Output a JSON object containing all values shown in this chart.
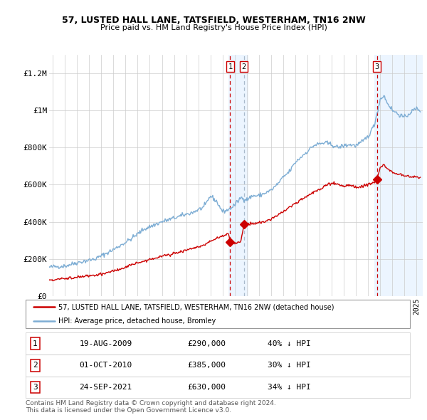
{
  "title1": "57, LUSTED HALL LANE, TATSFIELD, WESTERHAM, TN16 2NW",
  "title2": "Price paid vs. HM Land Registry's House Price Index (HPI)",
  "xlim_start": 1994.7,
  "xlim_end": 2025.5,
  "ylim": [
    0,
    1300000
  ],
  "yticks": [
    0,
    200000,
    400000,
    600000,
    800000,
    1000000,
    1200000
  ],
  "ytick_labels": [
    "£0",
    "£200K",
    "£400K",
    "£600K",
    "£800K",
    "£1M",
    "£1.2M"
  ],
  "sale1_date": 2009.63,
  "sale1_price": 290000,
  "sale1_label": "1",
  "sale2_date": 2010.75,
  "sale2_price": 385000,
  "sale2_label": "2",
  "sale3_date": 2021.73,
  "sale3_price": 630000,
  "sale3_label": "3",
  "red_line_color": "#cc0000",
  "blue_line_color": "#7dadd4",
  "marker_color": "#cc0000",
  "vline1_color": "#cc0000",
  "vline2_color": "#aabbcc",
  "vline3_color": "#cc0000",
  "shade_color": "#ddeeff",
  "shade_alpha": 0.55,
  "legend_text1": "57, LUSTED HALL LANE, TATSFIELD, WESTERHAM, TN16 2NW (detached house)",
  "legend_text2": "HPI: Average price, detached house, Bromley",
  "table_rows": [
    [
      "1",
      "19-AUG-2009",
      "£290,000",
      "40% ↓ HPI"
    ],
    [
      "2",
      "01-OCT-2010",
      "£385,000",
      "30% ↓ HPI"
    ],
    [
      "3",
      "24-SEP-2021",
      "£630,000",
      "34% ↓ HPI"
    ]
  ],
  "footnote1": "Contains HM Land Registry data © Crown copyright and database right 2024.",
  "footnote2": "This data is licensed under the Open Government Licence v3.0.",
  "hpi_anchors": [
    [
      1994.7,
      155000
    ],
    [
      1995.0,
      158000
    ],
    [
      1996.0,
      162000
    ],
    [
      1997.0,
      180000
    ],
    [
      1998.5,
      200000
    ],
    [
      2000.0,
      250000
    ],
    [
      2001.5,
      310000
    ],
    [
      2002.5,
      360000
    ],
    [
      2004.0,
      400000
    ],
    [
      2005.5,
      430000
    ],
    [
      2006.5,
      450000
    ],
    [
      2007.5,
      480000
    ],
    [
      2008.0,
      540000
    ],
    [
      2008.5,
      510000
    ],
    [
      2009.0,
      455000
    ],
    [
      2009.5,
      465000
    ],
    [
      2010.0,
      490000
    ],
    [
      2010.5,
      530000
    ],
    [
      2011.0,
      520000
    ],
    [
      2011.5,
      540000
    ],
    [
      2012.0,
      540000
    ],
    [
      2013.0,
      570000
    ],
    [
      2013.5,
      600000
    ],
    [
      2014.0,
      640000
    ],
    [
      2014.5,
      670000
    ],
    [
      2015.0,
      720000
    ],
    [
      2015.5,
      750000
    ],
    [
      2016.0,
      780000
    ],
    [
      2016.5,
      810000
    ],
    [
      2017.0,
      820000
    ],
    [
      2017.5,
      825000
    ],
    [
      2018.0,
      815000
    ],
    [
      2018.5,
      800000
    ],
    [
      2019.0,
      810000
    ],
    [
      2019.5,
      815000
    ],
    [
      2020.0,
      810000
    ],
    [
      2020.5,
      830000
    ],
    [
      2021.0,
      860000
    ],
    [
      2021.5,
      920000
    ],
    [
      2022.0,
      1060000
    ],
    [
      2022.3,
      1080000
    ],
    [
      2022.5,
      1050000
    ],
    [
      2023.0,
      1000000
    ],
    [
      2023.5,
      980000
    ],
    [
      2024.0,
      960000
    ],
    [
      2024.5,
      990000
    ],
    [
      2025.0,
      1010000
    ],
    [
      2025.3,
      1000000
    ]
  ],
  "red_anchors": [
    [
      1994.7,
      87000
    ],
    [
      1995.0,
      88000
    ],
    [
      1996.0,
      95000
    ],
    [
      1997.0,
      102000
    ],
    [
      1998.0,
      108000
    ],
    [
      1999.0,
      118000
    ],
    [
      2000.0,
      135000
    ],
    [
      2001.0,
      155000
    ],
    [
      2002.0,
      178000
    ],
    [
      2003.0,
      198000
    ],
    [
      2004.0,
      215000
    ],
    [
      2005.0,
      230000
    ],
    [
      2006.0,
      248000
    ],
    [
      2007.0,
      265000
    ],
    [
      2007.5,
      275000
    ],
    [
      2008.0,
      295000
    ],
    [
      2008.5,
      310000
    ],
    [
      2009.0,
      325000
    ],
    [
      2009.5,
      335000
    ],
    [
      2009.63,
      290000
    ],
    [
      2009.8,
      285000
    ],
    [
      2010.0,
      287000
    ],
    [
      2010.5,
      290000
    ],
    [
      2010.75,
      385000
    ],
    [
      2011.0,
      388000
    ],
    [
      2011.5,
      390000
    ],
    [
      2012.0,
      395000
    ],
    [
      2012.5,
      400000
    ],
    [
      2013.0,
      415000
    ],
    [
      2013.5,
      435000
    ],
    [
      2014.0,
      455000
    ],
    [
      2014.5,
      478000
    ],
    [
      2015.0,
      500000
    ],
    [
      2015.5,
      520000
    ],
    [
      2016.0,
      540000
    ],
    [
      2016.5,
      558000
    ],
    [
      2017.0,
      575000
    ],
    [
      2017.5,
      595000
    ],
    [
      2018.0,
      608000
    ],
    [
      2018.5,
      605000
    ],
    [
      2019.0,
      592000
    ],
    [
      2019.5,
      596000
    ],
    [
      2020.0,
      585000
    ],
    [
      2020.5,
      593000
    ],
    [
      2021.0,
      600000
    ],
    [
      2021.5,
      610000
    ],
    [
      2021.73,
      630000
    ],
    [
      2022.0,
      695000
    ],
    [
      2022.3,
      705000
    ],
    [
      2022.6,
      685000
    ],
    [
      2023.0,
      665000
    ],
    [
      2023.5,
      658000
    ],
    [
      2024.0,
      648000
    ],
    [
      2024.5,
      640000
    ],
    [
      2025.0,
      643000
    ],
    [
      2025.3,
      638000
    ]
  ]
}
